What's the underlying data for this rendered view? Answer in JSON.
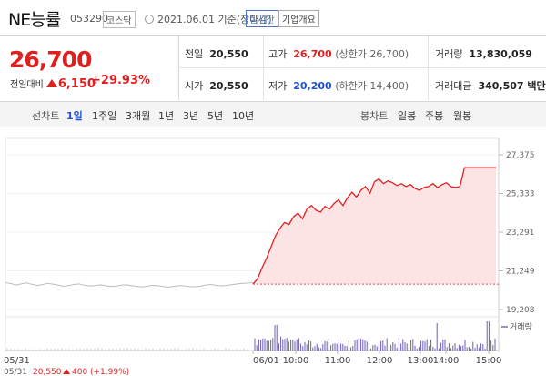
{
  "header": {
    "name": "NE능률",
    "code": "053290",
    "market": "코스닥",
    "date": "2021.06.01 기준(장마감)",
    "realtime": "실시간",
    "company": "기업개요"
  },
  "price": {
    "current": "26,700",
    "change_label": "전일대비",
    "change": "6,150",
    "change_pct": "+29.93%"
  },
  "stats": {
    "prev_label": "전일",
    "prev": "20,550",
    "high_label": "고가",
    "high": "26,700",
    "high_note": "(상한가 26,700)",
    "volume_label": "거래량",
    "volume": "13,830,059",
    "open_label": "시가",
    "open": "20,550",
    "low_label": "저가",
    "low": "20,200",
    "low_note": "(하한가 14,400)",
    "amount_label": "거래대금",
    "amount": "340,507 백만"
  },
  "toolbar": {
    "line_label": "선차트",
    "periods": [
      "1일",
      "1주일",
      "3개월",
      "1년",
      "3년",
      "5년",
      "10년"
    ],
    "selected": "1일",
    "candle_label": "봉차트",
    "candles": [
      "일봉",
      "주봉",
      "월봉"
    ]
  },
  "chart_data": {
    "type": "line",
    "y_ticks": [
      "27,375",
      "25,333",
      "23,291",
      "21,249",
      "19,208"
    ],
    "ylim": [
      19208,
      27375
    ],
    "prev_close": 20550,
    "x_labels": [
      "05/31",
      "06/01",
      "10:00",
      "11:00",
      "12:00",
      "13:00",
      "14:00",
      "15:00"
    ],
    "prev_day_series": [
      20620,
      20580,
      20500,
      20560,
      20610,
      20540,
      20480,
      20520,
      20590,
      20550,
      20500,
      20430,
      20470,
      20530,
      20560,
      20490,
      20450,
      20470,
      20510,
      20460,
      20420,
      20440,
      20490,
      20510,
      20470,
      20430,
      20400,
      20440,
      20480,
      20460,
      20420,
      20390,
      20430,
      20470,
      20450,
      20420,
      20410,
      20440,
      20500,
      20530,
      20480,
      20450,
      20480,
      20520,
      20560,
      20590,
      20600,
      20640
    ],
    "day_series": [
      20550,
      20820,
      21400,
      21900,
      22500,
      23100,
      23500,
      23800,
      23700,
      24100,
      24300,
      24000,
      24500,
      24700,
      24450,
      24350,
      24650,
      24500,
      24800,
      25000,
      24700,
      25100,
      25400,
      25150,
      25500,
      25700,
      25350,
      25950,
      26100,
      25850,
      26000,
      25900,
      25750,
      25850,
      25700,
      25800,
      25600,
      25500,
      25650,
      25700,
      25850,
      25650,
      25800,
      25900,
      25700,
      25650,
      25700,
      26700,
      26700,
      26700,
      26700,
      26700,
      26700,
      26700,
      26700
    ],
    "volume_label": "거래량",
    "footer": {
      "date": "05/31",
      "price": "20,550",
      "change": "400",
      "pct": "(+1.99%)"
    }
  }
}
